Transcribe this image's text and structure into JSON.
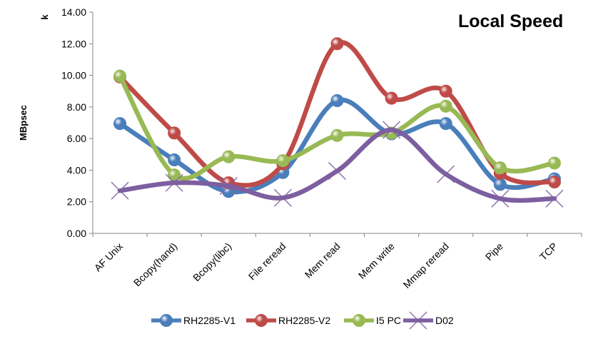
{
  "chart_data": {
    "type": "line",
    "title": "Local Speed",
    "ylabel": "MBpsec",
    "yunit": "k",
    "xlabel": "",
    "ylim": [
      0,
      14
    ],
    "ytick_step": 2,
    "ytick_labels": [
      "0.00",
      "2.00",
      "4.00",
      "6.00",
      "8.00",
      "10.00",
      "12.00",
      "14.00"
    ],
    "grid": false,
    "smooth": true,
    "legend": "bottom",
    "categories": [
      "AF Unix",
      "Bcopy(hand)",
      "Bcopy(libc)",
      "File reread",
      "Mem read",
      "Mem write",
      "Mmap reread",
      "Pipe",
      "TCP"
    ],
    "series": [
      {
        "name": "RH2285-V1",
        "color": "#4a7ebb",
        "marker": "circle",
        "values": [
          6.95,
          4.65,
          2.65,
          3.85,
          8.4,
          6.3,
          6.95,
          3.1,
          3.45
        ]
      },
      {
        "name": "RH2285-V2",
        "color": "#be4b48",
        "marker": "circle",
        "values": [
          9.9,
          6.35,
          3.2,
          4.4,
          12.0,
          8.55,
          9.0,
          3.8,
          3.25
        ]
      },
      {
        "name": "I5 PC",
        "color": "#98b954",
        "marker": "circle",
        "values": [
          9.95,
          3.7,
          4.85,
          4.6,
          6.2,
          6.35,
          8.05,
          4.15,
          4.45
        ]
      },
      {
        "name": "D02",
        "color": "#7d5fa0",
        "marker": "x",
        "values": [
          2.7,
          3.2,
          3.0,
          2.25,
          3.95,
          6.55,
          3.75,
          2.2,
          2.2
        ]
      }
    ]
  }
}
